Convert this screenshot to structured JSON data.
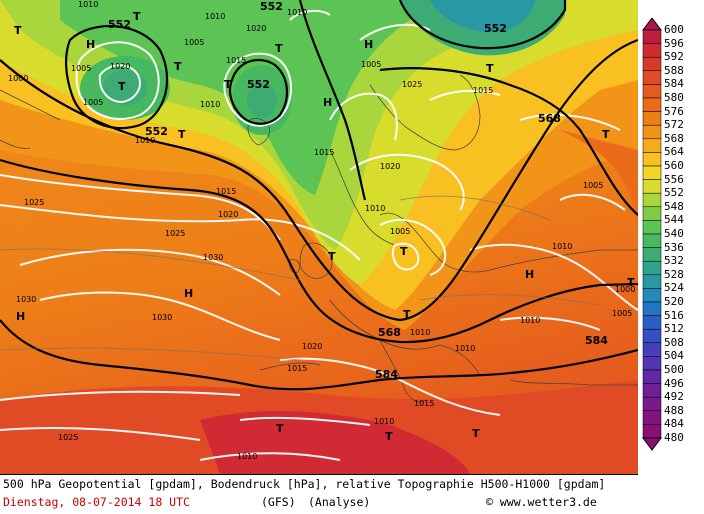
{
  "footer": {
    "title": "500 hPa Geopotential [gpdam], Bodendruck [hPa], relative Topographie H500-H1000 [gpdam]",
    "date": "Dienstag, 08-07-2014  18 UTC",
    "model": "(GFS)",
    "analysis": "(Analyse)",
    "credit": "© www.wetter3.de"
  },
  "legend": {
    "values": [
      "600",
      "596",
      "592",
      "588",
      "584",
      "580",
      "576",
      "572",
      "568",
      "564",
      "560",
      "556",
      "552",
      "548",
      "544",
      "540",
      "536",
      "532",
      "528",
      "524",
      "520",
      "516",
      "512",
      "508",
      "504",
      "500",
      "496",
      "492",
      "488",
      "484",
      "480"
    ],
    "colors": [
      "#a8184a",
      "#c01c3c",
      "#d02a34",
      "#d83a2a",
      "#e04a24",
      "#e55a1e",
      "#ea6c1a",
      "#ee7e18",
      "#f29418",
      "#f6ac1c",
      "#f8c020",
      "#f4d424",
      "#d8dc2c",
      "#a8d63c",
      "#80cc48",
      "#5cc454",
      "#48b860",
      "#3cac74",
      "#30a48a",
      "#2898a4",
      "#2488b8",
      "#2474c4",
      "#2a5ec8",
      "#3450c4",
      "#4440bc",
      "#5434b0",
      "#6228a4",
      "#6e2098",
      "#781a8c",
      "#821480",
      "#8a0e76"
    ]
  },
  "labels": {
    "geopotential": [
      {
        "text": "552"
      },
      {
        "text": "552"
      },
      {
        "text": "552"
      },
      {
        "text": "552"
      },
      {
        "text": "552"
      },
      {
        "text": "568"
      },
      {
        "text": "568"
      },
      {
        "text": "584"
      },
      {
        "text": "584"
      }
    ],
    "pressure_systems": [
      "T",
      "T",
      "T",
      "T",
      "T",
      "T",
      "T",
      "T",
      "T",
      "T",
      "T",
      "T",
      "T",
      "T",
      "T",
      "T",
      "H",
      "H",
      "H",
      "H",
      "H",
      "H"
    ],
    "isobars": [
      "1010",
      "1010",
      "1010",
      "1005",
      "1020",
      "1015",
      "1005",
      "1010",
      "1020",
      "1005",
      "1010",
      "1000",
      "1015",
      "1025",
      "1025",
      "1020",
      "1010",
      "1015",
      "1010",
      "1030",
      "1025",
      "1030",
      "1030",
      "1020",
      "1015",
      "1005",
      "1010",
      "1010",
      "1015",
      "1015",
      "1010",
      "1010",
      "1025",
      "1005",
      "1005",
      "1010",
      "1000",
      "1020",
      "1005"
    ]
  }
}
